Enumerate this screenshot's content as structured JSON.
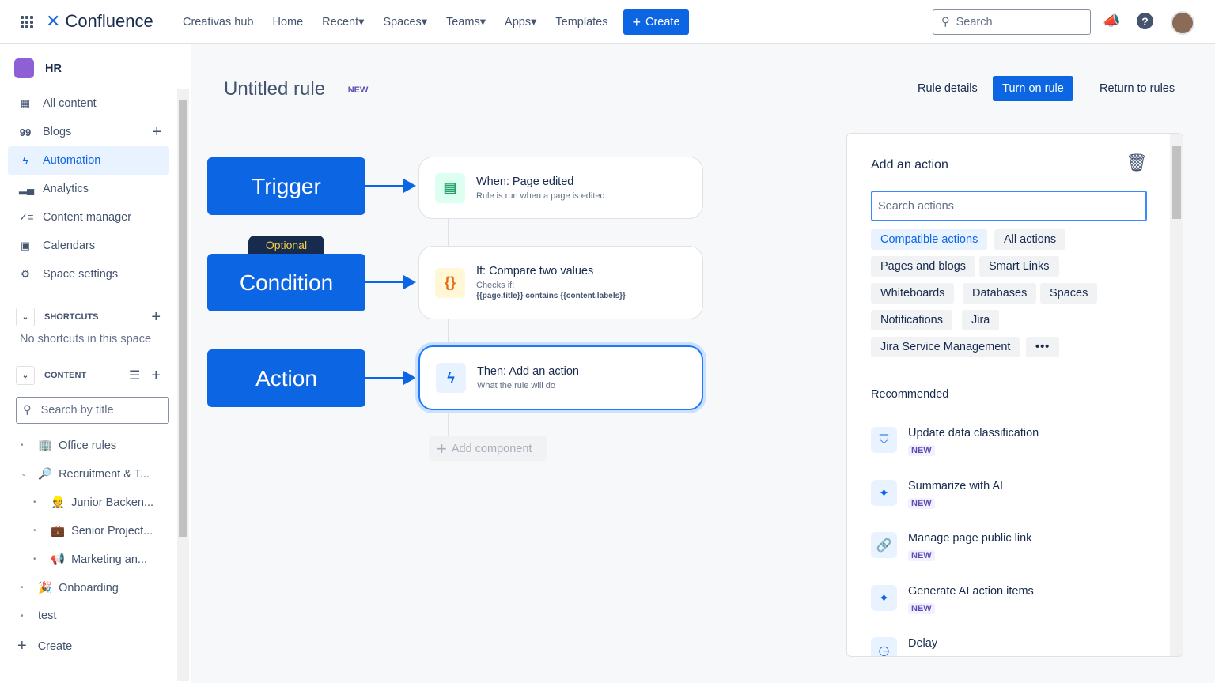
{
  "topbar": {
    "app_name": "Confluence",
    "nav": [
      "Creativas hub",
      "Home",
      "Recent",
      "Spaces",
      "Teams",
      "Apps",
      "Templates"
    ],
    "create_label": "Create",
    "search_placeholder": "Search"
  },
  "sidebar": {
    "space_name": "HR",
    "items": [
      {
        "label": "All content",
        "icon": "grid-icon"
      },
      {
        "label": "Blogs",
        "icon": "quote-icon"
      },
      {
        "label": "Automation",
        "icon": "lightning-icon"
      },
      {
        "label": "Analytics",
        "icon": "chart-icon"
      },
      {
        "label": "Content manager",
        "icon": "checklist-icon"
      },
      {
        "label": "Calendars",
        "icon": "calendar-icon"
      },
      {
        "label": "Space settings",
        "icon": "gear-icon"
      }
    ],
    "active": "Automation",
    "shortcuts_label": "SHORTCUTS",
    "no_shortcuts": "No shortcuts in this space",
    "content_label": "CONTENT",
    "search_placeholder": "Search by title",
    "tree": [
      "Office rules",
      "Recruitment & T...",
      "Junior Backen...",
      "Senior Project...",
      "Marketing an...",
      "Onboarding",
      "test"
    ],
    "create_label": "Create"
  },
  "rule": {
    "title": "Untitled rule",
    "badge": "NEW",
    "rule_details": "Rule details",
    "turn_on": "Turn on rule",
    "return": "Return to rules",
    "blocks": {
      "trigger": "Trigger",
      "condition": "Condition",
      "action": "Action",
      "optional": "Optional"
    },
    "trigger_card": {
      "title": "When: Page edited",
      "desc": "Rule is run when a page is edited."
    },
    "condition_card": {
      "title": "If: Compare two values",
      "desc": "Checks if:",
      "expr": "{{page.title}} contains {{content.labels}}"
    },
    "action_card": {
      "title": "Then: Add an action",
      "desc": "What the rule will do"
    },
    "add_component": "Add component"
  },
  "panel": {
    "title": "Add an action",
    "search_placeholder": "Search actions",
    "chips": [
      "Compatible actions",
      "All actions",
      "Pages and blogs",
      "Smart Links",
      "Whiteboards",
      "Databases",
      "Spaces",
      "Notifications",
      "Jira",
      "Jira Service Management"
    ],
    "selected_chip": "Compatible actions",
    "recommended_label": "Recommended",
    "recommended": [
      {
        "title": "Update data classification",
        "badge": "NEW",
        "icon": "shield-icon"
      },
      {
        "title": "Summarize with AI",
        "badge": "NEW",
        "icon": "sparkle-icon"
      },
      {
        "title": "Manage page public link",
        "badge": "NEW",
        "icon": "link-icon"
      },
      {
        "title": "Generate AI action items",
        "badge": "NEW",
        "icon": "sparkle-icon"
      },
      {
        "title": "Delay",
        "icon": "clock-icon"
      }
    ]
  },
  "colors": {
    "brand": "#0c66e4",
    "accent_bg": "#e9f2ff",
    "new_badge": "#5e4db2",
    "optional": "#172b4d"
  }
}
